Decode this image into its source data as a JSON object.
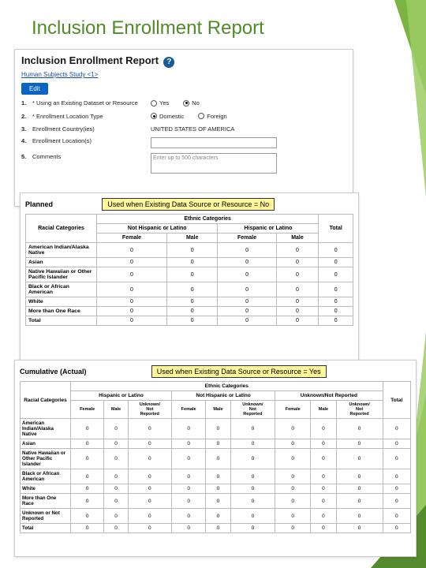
{
  "slide": {
    "title": "Inclusion Enrollment Report"
  },
  "panel1": {
    "heading": "Inclusion Enrollment Report",
    "link": "Human Subjects Study <1>",
    "edit": "Edit",
    "rows": [
      {
        "num": "1.",
        "label": "* Using an Existing Dataset or Resource",
        "opts": [
          {
            "label": "Yes",
            "sel": false
          },
          {
            "label": "No",
            "sel": true
          }
        ]
      },
      {
        "num": "2.",
        "label": "* Enrollment Location Type",
        "opts": [
          {
            "label": "Domestic",
            "sel": true
          },
          {
            "label": "Foreign",
            "sel": false
          }
        ]
      },
      {
        "num": "3.",
        "label": "Enrollment Country(ies)",
        "text": "UNITED STATES OF AMERICA"
      },
      {
        "num": "4.",
        "label": "Enrollment Location(s)",
        "input": true
      },
      {
        "num": "5.",
        "label": "Comments",
        "textarea": "Enter up to 500 characters"
      }
    ]
  },
  "panel2": {
    "section": "Planned",
    "callout": "Used when Existing Data Source or Resource = No",
    "headers": {
      "race": "Racial Categories",
      "ethnic": "Ethnic Categories",
      "groups": [
        "Not Hispanic or Latino",
        "Hispanic or Latino"
      ],
      "sub": [
        "Female",
        "Male",
        "Female",
        "Male"
      ],
      "total": "Total"
    },
    "rows": [
      {
        "label": "American Indian/Alaska Native",
        "v": [
          "0",
          "0",
          "0",
          "0",
          "0"
        ]
      },
      {
        "label": "Asian",
        "v": [
          "0",
          "0",
          "0",
          "0",
          "0"
        ]
      },
      {
        "label": "Native Hawaiian or Other Pacific Islander",
        "v": [
          "0",
          "0",
          "0",
          "0",
          "0"
        ]
      },
      {
        "label": "Black or African American",
        "v": [
          "0",
          "0",
          "0",
          "0",
          "0"
        ]
      },
      {
        "label": "White",
        "v": [
          "0",
          "0",
          "0",
          "0",
          "0"
        ]
      },
      {
        "label": "More than One Race",
        "v": [
          "0",
          "0",
          "0",
          "0",
          "0"
        ]
      },
      {
        "label": "Total",
        "v": [
          "0",
          "0",
          "0",
          "0",
          "0"
        ]
      }
    ]
  },
  "panel3": {
    "section": "Cumulative (Actual)",
    "callout": "Used when Existing Data Source or Resource = Yes",
    "headers": {
      "race": "Racial Categories",
      "ethnic": "Ethnic Categories",
      "groups": [
        "Hispanic or Latino",
        "Not Hispanic or Latino",
        "Unknown/Not Reported"
      ],
      "sub": [
        "Female",
        "Male",
        "Unknown/\nNot\nReported",
        "Female",
        "Male",
        "Unknown/\nNot\nReported",
        "Female",
        "Male",
        "Unknown/\nNot\nReported"
      ],
      "total": "Total"
    },
    "rows": [
      {
        "label": "American Indian/Alaska Native",
        "v": [
          "0",
          "0",
          "0",
          "0",
          "0",
          "0",
          "0",
          "0",
          "0",
          "0"
        ]
      },
      {
        "label": "Asian",
        "v": [
          "0",
          "0",
          "0",
          "0",
          "0",
          "0",
          "0",
          "0",
          "0",
          "0"
        ]
      },
      {
        "label": "Native Hawaiian or Other Pacific Islander",
        "v": [
          "0",
          "0",
          "0",
          "0",
          "0",
          "0",
          "0",
          "0",
          "0",
          "0"
        ]
      },
      {
        "label": "Black or African American",
        "v": [
          "0",
          "0",
          "0",
          "0",
          "0",
          "0",
          "0",
          "0",
          "0",
          "0"
        ]
      },
      {
        "label": "White",
        "v": [
          "0",
          "0",
          "0",
          "0",
          "0",
          "0",
          "0",
          "0",
          "0",
          "0"
        ]
      },
      {
        "label": "More than One Race",
        "v": [
          "0",
          "0",
          "0",
          "0",
          "0",
          "0",
          "0",
          "0",
          "0",
          "0"
        ]
      },
      {
        "label": "Unknown or Not Reported",
        "v": [
          "0",
          "0",
          "0",
          "0",
          "0",
          "0",
          "0",
          "0",
          "0",
          "0"
        ]
      },
      {
        "label": "Total",
        "v": [
          "0",
          "0",
          "0",
          "0",
          "0",
          "0",
          "0",
          "0",
          "0",
          "0"
        ]
      }
    ]
  },
  "colors": {
    "accent": "#4e8c25",
    "link": "#1a4da8",
    "btn": "#0b63c4",
    "callout": "#fff59a"
  }
}
